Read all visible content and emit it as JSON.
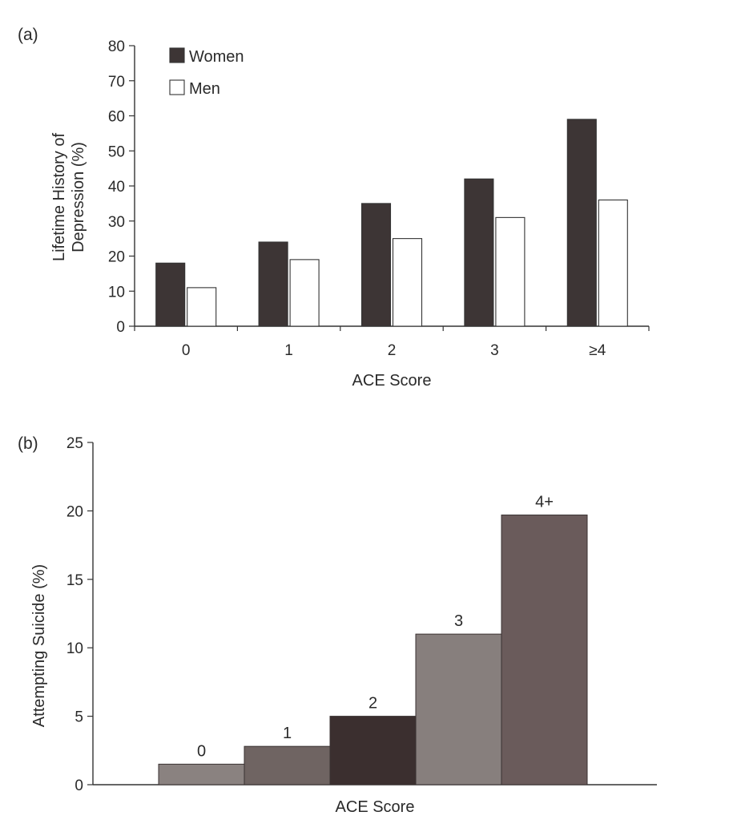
{
  "chart_data": [
    {
      "panel_label": "(a)",
      "type": "bar",
      "categories": [
        "0",
        "1",
        "2",
        "3",
        "≥4"
      ],
      "series": [
        {
          "name": "Women",
          "values": [
            18,
            24,
            35,
            42,
            59
          ],
          "color": "#3d3535"
        },
        {
          "name": "Men",
          "values": [
            11,
            19,
            25,
            31,
            36
          ],
          "color": "#ffffff"
        }
      ],
      "ylabel_lines": [
        "Lifetime History of",
        "Depression (%)"
      ],
      "xlabel": "ACE Score",
      "ylim": [
        0,
        80
      ],
      "yticks": [
        0,
        10,
        20,
        30,
        40,
        50,
        60,
        70,
        80
      ],
      "legend_position": "top-left",
      "grid": false
    },
    {
      "panel_label": "(b)",
      "type": "bar",
      "categories": [
        "0",
        "1",
        "2",
        "3",
        "4+"
      ],
      "values": [
        1.5,
        2.8,
        5,
        11,
        19.7
      ],
      "colors": [
        "#8a8280",
        "#6f6462",
        "#3b2f2f",
        "#877f7d",
        "#6a5b5b"
      ],
      "ylabel": "Attempting Suicide (%)",
      "xlabel": "ACE Score",
      "ylim": [
        0,
        25
      ],
      "yticks": [
        0,
        5,
        10,
        15,
        20,
        25
      ],
      "grid": false
    }
  ]
}
